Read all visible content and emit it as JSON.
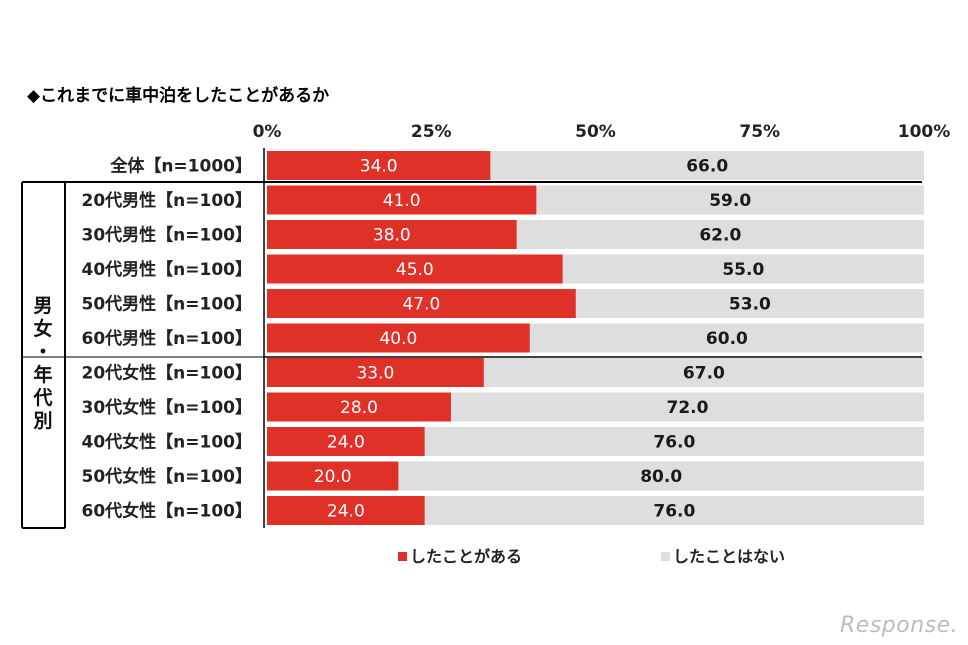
{
  "chart_data": {
    "type": "bar",
    "orientation": "horizontal",
    "stacked": true,
    "title": "◆これまでに車中泊をしたことがあるか",
    "x_ticks": [
      "0%",
      "25%",
      "50%",
      "75%",
      "100%"
    ],
    "xlim": [
      0,
      100
    ],
    "categories": [
      "全体【n=1000】",
      "20代男性【n=100】",
      "30代男性【n=100】",
      "40代男性【n=100】",
      "50代男性【n=100】",
      "60代男性【n=100】",
      "20代女性【n=100】",
      "30代女性【n=100】",
      "40代女性【n=100】",
      "50代女性【n=100】",
      "60代女性【n=100】"
    ],
    "series": [
      {
        "name": "したことがある",
        "color": "#e03128",
        "values": [
          34.0,
          41.0,
          38.0,
          45.0,
          47.0,
          40.0,
          33.0,
          28.0,
          24.0,
          20.0,
          24.0
        ],
        "labels": [
          "34.0",
          "41.0",
          "38.0",
          "45.0",
          "47.0",
          "40.0",
          "33.0",
          "28.0",
          "24.0",
          "20.0",
          "24.0"
        ]
      },
      {
        "name": "したことはない",
        "color": "#dedede",
        "values": [
          66.0,
          59.0,
          62.0,
          55.0,
          53.0,
          60.0,
          67.0,
          72.0,
          76.0,
          80.0,
          76.0
        ],
        "labels": [
          "66.0",
          "59.0",
          "62.0",
          "55.0",
          "53.0",
          "60.0",
          "67.0",
          "72.0",
          "76.0",
          "80.0",
          "76.0"
        ]
      }
    ],
    "group_label": "男女・年代別",
    "legend_position": "bottom"
  },
  "watermark": "Response."
}
